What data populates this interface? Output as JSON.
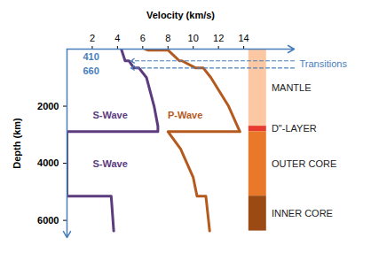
{
  "chart_data": {
    "type": "line",
    "x_label": "Velocity (km/s)",
    "y_label": "Depth (km)",
    "xlim": [
      0,
      18
    ],
    "xticks": [
      2,
      4,
      6,
      8,
      10,
      12,
      14
    ],
    "ylim": [
      0,
      6600
    ],
    "yticks": [
      2000,
      4000,
      6000
    ],
    "series": [
      {
        "name": "S-Wave",
        "color": "#5c3b7e",
        "depths": [
          0,
          410,
          410,
          660,
          660,
          1000,
          2000,
          2700,
          2890,
          2890,
          5150,
          5150,
          6371
        ],
        "values": [
          4.3,
          4.6,
          4.9,
          5.3,
          5.7,
          6.3,
          6.9,
          7.2,
          7.2,
          0,
          0,
          3.5,
          3.7
        ]
      },
      {
        "name": "P-Wave",
        "color": "#b45a1e",
        "depths": [
          0,
          35,
          35,
          410,
          410,
          660,
          660,
          1000,
          2000,
          2700,
          2890,
          2890,
          3500,
          4500,
          5150,
          5150,
          6371
        ],
        "values": [
          6.2,
          6.4,
          8.0,
          8.9,
          9.1,
          10.2,
          10.8,
          11.4,
          12.8,
          13.5,
          13.7,
          8.0,
          9.0,
          10.0,
          10.3,
          11.0,
          11.3
        ]
      }
    ],
    "transitions": {
      "label": "Transitions",
      "color": "#4a7ebb",
      "depths": [
        410,
        660
      ]
    },
    "layers": [
      {
        "name": "MANTLE",
        "top": 0,
        "bottom": 2700,
        "color": "#fbc8a3"
      },
      {
        "name": "D\"-LAYER",
        "top": 2700,
        "bottom": 2890,
        "color": "#e63b2e"
      },
      {
        "name": "OUTER CORE",
        "top": 2890,
        "bottom": 5150,
        "color": "#e9782b"
      },
      {
        "name": "INNER CORE",
        "top": 5150,
        "bottom": 6371,
        "color": "#9c4a14"
      }
    ]
  }
}
